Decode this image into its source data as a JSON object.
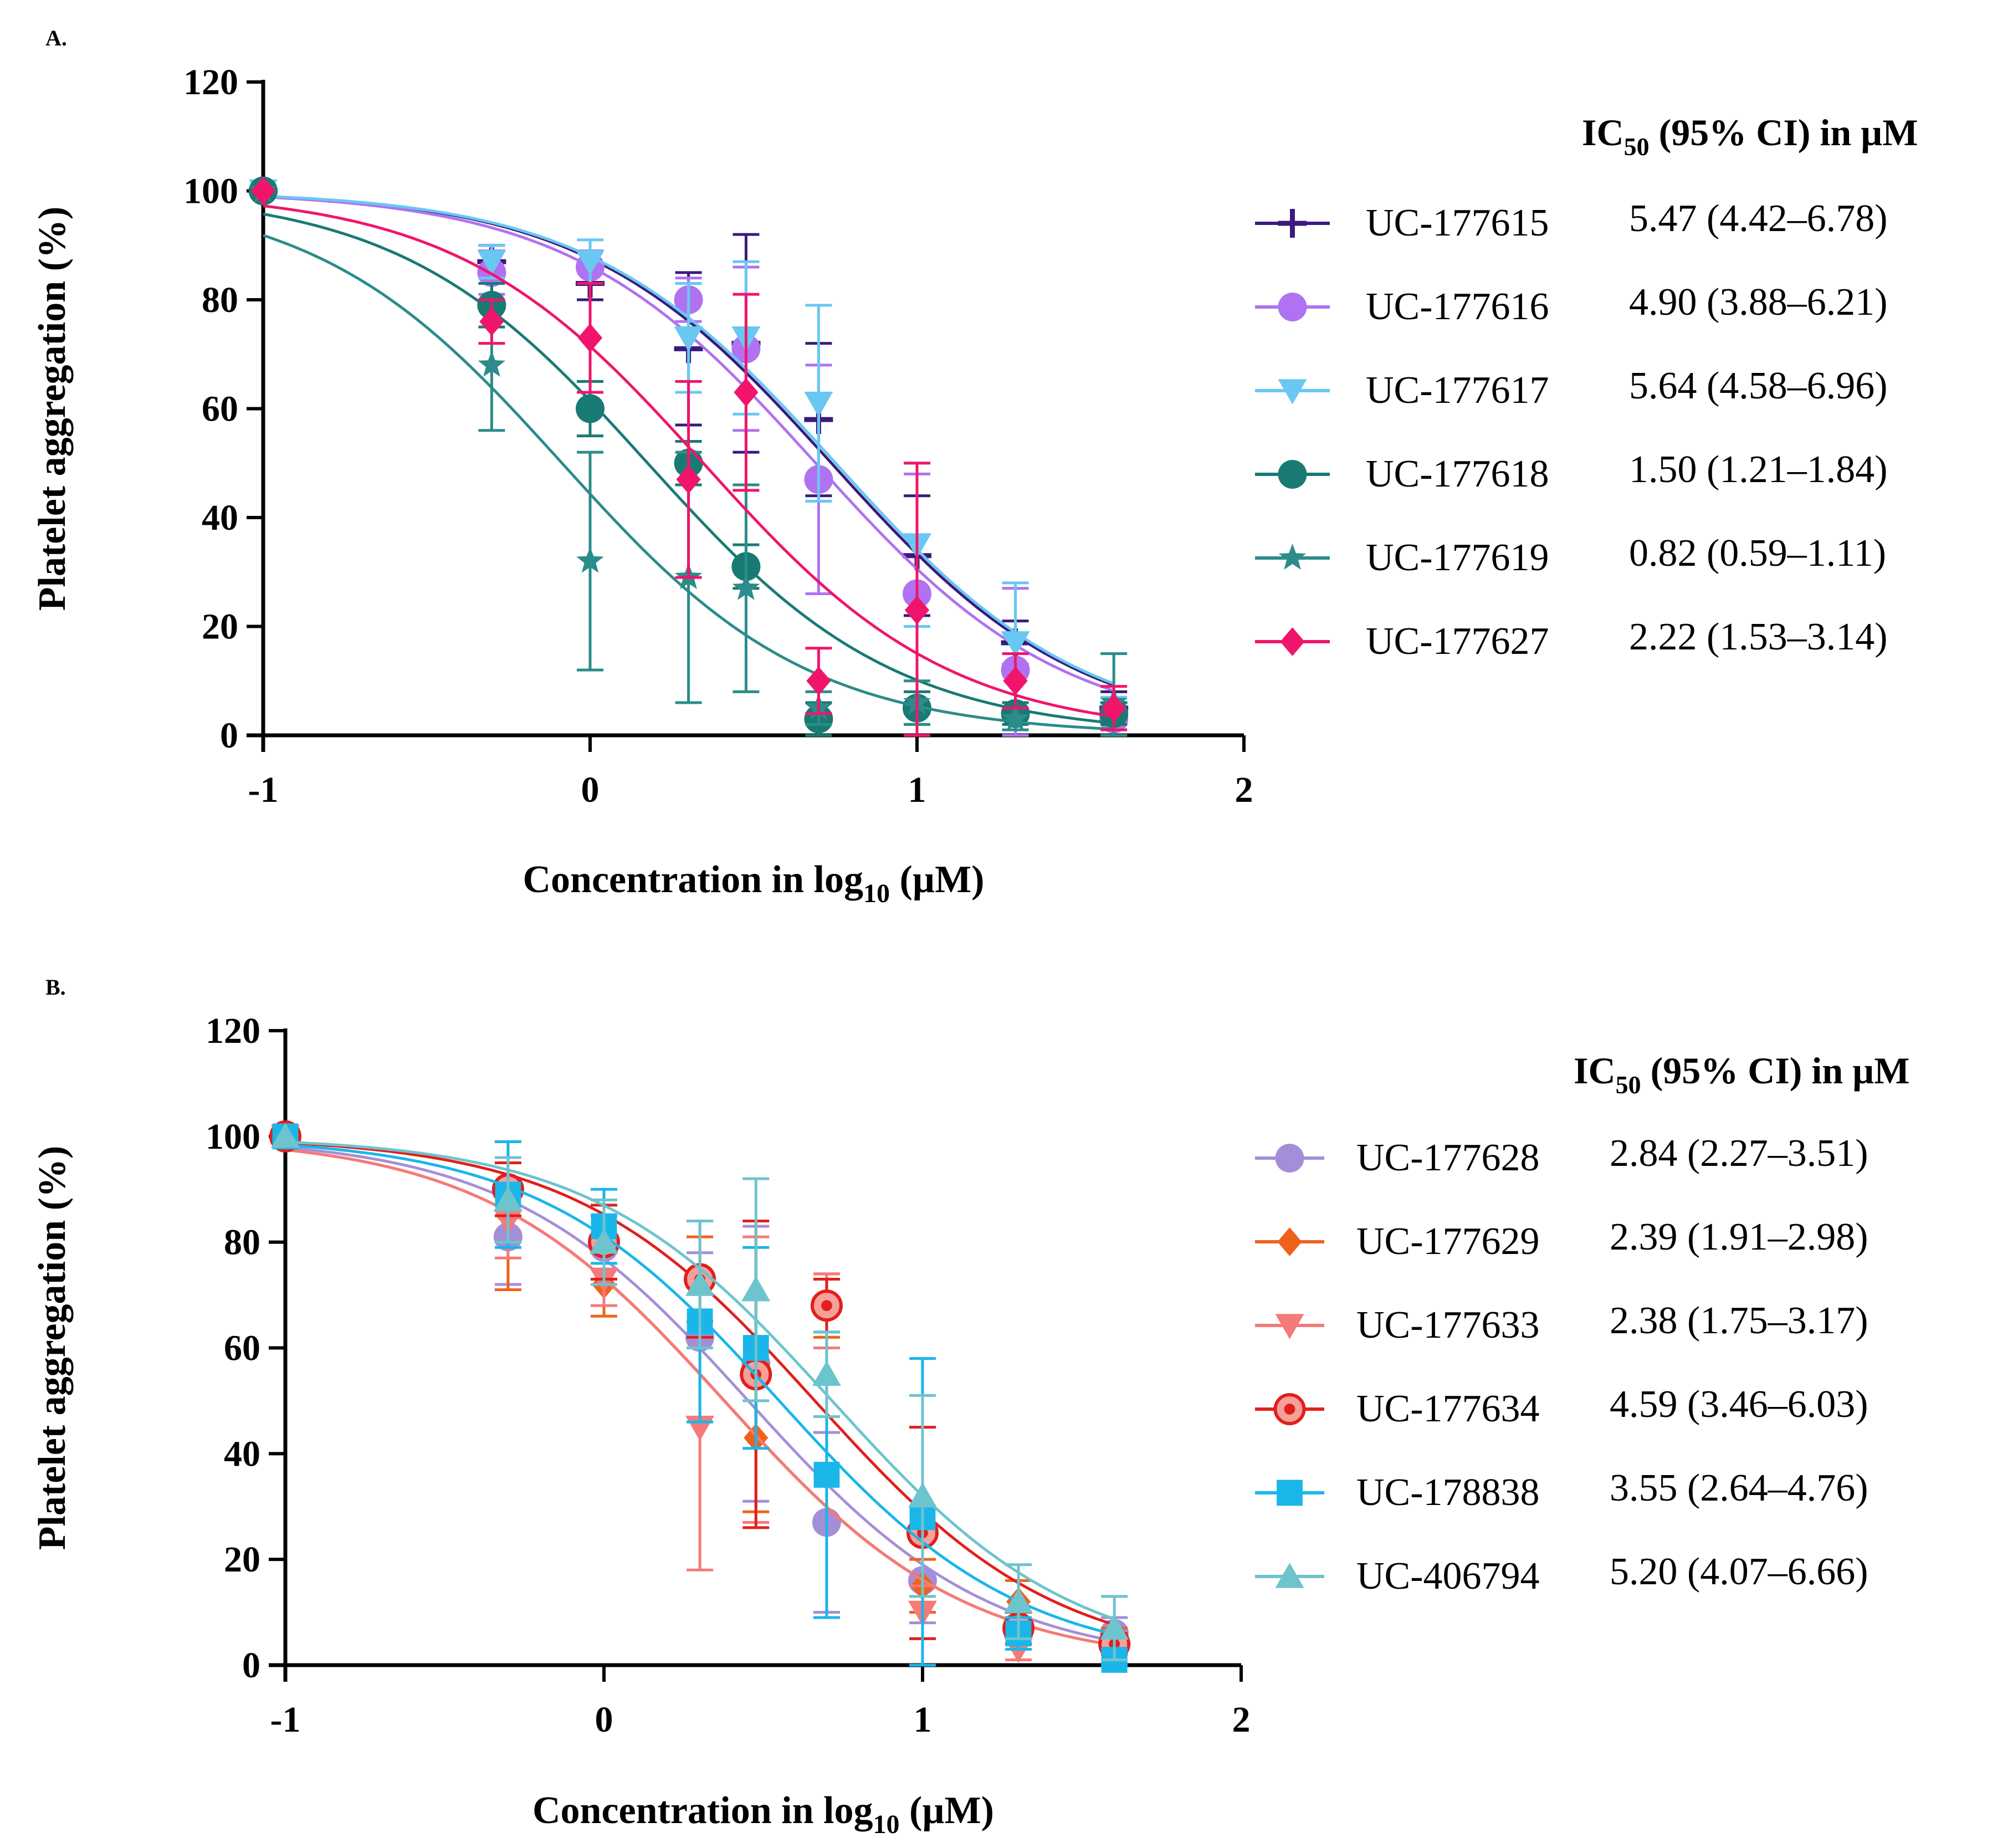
{
  "chart_data": [
    {
      "type": "line",
      "panel": "A.",
      "xlabel": "Concentration in log10 (µM)",
      "ylabel": "Platelet aggregation (%)",
      "xlim": [
        -1,
        2
      ],
      "ylim": [
        0,
        120
      ],
      "xticks": [
        "-1",
        "0",
        "1",
        "2"
      ],
      "yticks": [
        "0",
        "20",
        "40",
        "60",
        "80",
        "100",
        "120"
      ],
      "legend_title": "IC50 (95% CI) in µM",
      "legend_title_parts": [
        "IC",
        "50",
        " (95% CI) in µM"
      ],
      "legend_placement": "right",
      "x": [
        -1,
        -0.301,
        0,
        0.301,
        0.477,
        0.699,
        1,
        1.301,
        1.602
      ],
      "series": [
        {
          "name": "UC-177615",
          "ic50": "5.47 (4.42–6.78)",
          "color": "#3b1a7d",
          "marker": "plus",
          "curve_ic50_log": 0.738,
          "values": [
            100,
            87,
            83,
            71,
            72,
            58,
            33,
            17,
            5
          ],
          "errors": [
            0,
            3,
            3,
            14,
            20,
            14,
            11,
            4,
            3
          ]
        },
        {
          "name": "UC-177616",
          "ic50": "4.90 (3.88–6.21)",
          "color": "#b072f0",
          "marker": "circle",
          "curve_ic50_log": 0.69,
          "values": [
            100,
            85,
            86,
            80,
            71,
            47,
            26,
            12,
            3
          ],
          "errors": [
            0,
            4,
            3,
            4,
            15,
            21,
            22,
            15,
            3
          ]
        },
        {
          "name": "UC-177617",
          "ic50": "5.64 (4.58–6.96)",
          "color": "#68c8f2",
          "marker": "triangle-down",
          "curve_ic50_log": 0.751,
          "values": [
            100,
            87,
            87,
            73,
            73,
            61,
            35,
            17,
            4
          ],
          "errors": [
            0,
            3,
            4,
            10,
            14,
            18,
            15,
            11,
            3
          ]
        },
        {
          "name": "UC-177618",
          "ic50": "1.50 (1.21–1.84)",
          "color": "#197a74",
          "marker": "circle",
          "curve_ic50_log": 0.176,
          "values": [
            100,
            79,
            60,
            50,
            31,
            3,
            5,
            4,
            4
          ],
          "errors": [
            0,
            4,
            5,
            4,
            4,
            3,
            3,
            2,
            2
          ]
        },
        {
          "name": "UC-177619",
          "ic50": "0.82 (0.59–1.11)",
          "color": "#2b8c8a",
          "marker": "star",
          "curve_ic50_log": -0.086,
          "values": [
            100,
            68,
            32,
            29,
            27,
            5,
            6,
            3,
            6
          ],
          "errors": [
            0,
            12,
            20,
            23,
            19,
            3,
            4,
            2,
            9
          ]
        },
        {
          "name": "UC-177627",
          "ic50": "2.22 (1.53–3.14)",
          "color": "#f0156b",
          "marker": "diamond",
          "curve_ic50_log": 0.346,
          "values": [
            100,
            76,
            73,
            47,
            63,
            10,
            23,
            10,
            5
          ],
          "errors": [
            0,
            4,
            10,
            18,
            18,
            6,
            27,
            5,
            4
          ]
        }
      ]
    },
    {
      "type": "line",
      "panel": "B.",
      "xlabel": "Concentration in log10 (µM)",
      "ylabel": "Platelet aggregation (%)",
      "xlim": [
        -1,
        2
      ],
      "ylim": [
        0,
        120
      ],
      "xticks": [
        "-1",
        "0",
        "1",
        "2"
      ],
      "yticks": [
        "0",
        "20",
        "40",
        "60",
        "80",
        "100",
        "120"
      ],
      "legend_title": "IC50 (95% CI) in µM",
      "legend_title_parts": [
        "IC",
        "50",
        " (95% CI) in µM"
      ],
      "legend_placement": "right",
      "x": [
        -1,
        -0.301,
        0,
        0.301,
        0.477,
        0.699,
        1,
        1.301,
        1.602
      ],
      "series": [
        {
          "name": "UC-177628",
          "ic50": "2.84 (2.27–3.51)",
          "color": "#a58ed8",
          "marker": "circle",
          "curve_ic50_log": 0.453,
          "values": [
            100,
            81,
            79,
            62,
            57,
            27,
            16,
            6,
            6
          ],
          "errors": [
            0,
            9,
            6,
            16,
            26,
            17,
            8,
            2,
            3
          ]
        },
        {
          "name": "UC-177629",
          "ic50": "2.39 (1.91–2.98)",
          "color": "#f0621c",
          "marker": "diamond",
          "curve_ic50_log": 0.378,
          "values": [
            100,
            85,
            72,
            73,
            43,
            68,
            15,
            12,
            4
          ],
          "errors": [
            0,
            14,
            6,
            8,
            14,
            6,
            5,
            4,
            3
          ]
        },
        {
          "name": "UC-177633",
          "ic50": "2.38 (1.75–3.17)",
          "color": "#f57a7a",
          "marker": "triangle-down",
          "curve_ic50_log": 0.377,
          "values": [
            100,
            84,
            73,
            45,
            54,
            67,
            10,
            3,
            4
          ],
          "errors": [
            0,
            7,
            5,
            27,
            27,
            7,
            5,
            2,
            2
          ]
        },
        {
          "name": "UC-177634",
          "ic50": "4.59 (3.46–6.03)",
          "color": "#e0201c",
          "marker": "circle-dot",
          "curve_ic50_log": 0.662,
          "values": [
            100,
            90,
            80,
            73,
            55,
            68,
            25,
            7,
            4
          ],
          "errors": [
            0,
            5,
            7,
            11,
            29,
            5,
            20,
            3,
            2
          ]
        },
        {
          "name": "UC-178838",
          "ic50": "3.55 (2.64–4.76)",
          "color": "#1ab6ea",
          "marker": "square",
          "curve_ic50_log": 0.55,
          "values": [
            100,
            89,
            83,
            65,
            60,
            36,
            28,
            6,
            1
          ],
          "errors": [
            0,
            10,
            7,
            19,
            19,
            27,
            30,
            3,
            2
          ]
        },
        {
          "name": "UC-406794",
          "ic50": "5.20 (4.07–6.66)",
          "color": "#6ec4cc",
          "marker": "triangle-up",
          "curve_ic50_log": 0.716,
          "values": [
            100,
            88,
            80,
            72,
            71,
            55,
            32,
            12,
            7
          ],
          "errors": [
            0,
            8,
            8,
            12,
            21,
            8,
            19,
            7,
            6
          ]
        }
      ]
    }
  ]
}
